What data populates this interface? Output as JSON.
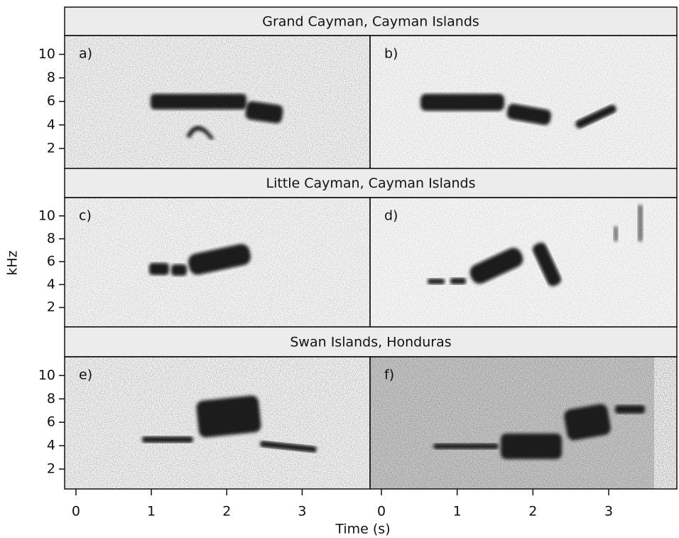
{
  "chart_data": {
    "type": "spectrogram",
    "y_label": "kHz",
    "x_label": "Time (s)",
    "ylim": [
      0.3,
      11.6
    ],
    "yticks": [
      2,
      4,
      6,
      8,
      10
    ],
    "xlim": [
      -0.15,
      3.9
    ],
    "xticks": [
      0,
      1,
      2,
      3
    ],
    "rows": [
      {
        "title": "Grand Cayman, Cayman Islands",
        "panels": [
          "a)",
          "b)"
        ]
      },
      {
        "title": "Little Cayman, Cayman Islands",
        "panels": [
          "c)",
          "d)"
        ]
      },
      {
        "title": "Swan Islands, Honduras",
        "panels": [
          "e)",
          "f)"
        ]
      }
    ]
  }
}
